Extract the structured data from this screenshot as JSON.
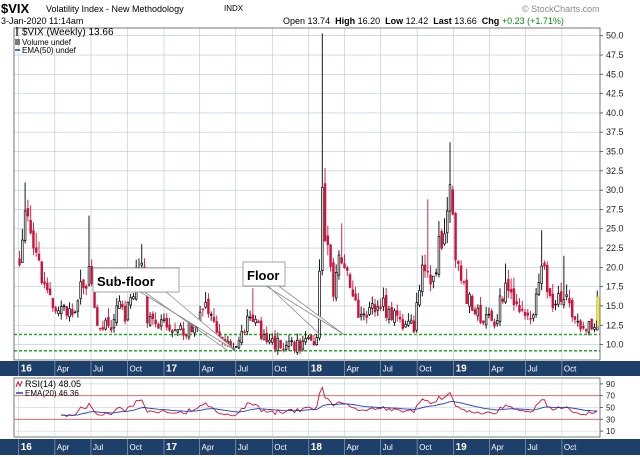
{
  "header": {
    "symbol": "$VIX",
    "description": "Volatility Index - New Methodology",
    "exchange": "INDX",
    "datetime": "3-Jan-2020 11:14am",
    "open_label": "Open",
    "open": "13.74",
    "high_label": "High",
    "high": "16.20",
    "low_label": "Low",
    "low": "12.42",
    "last_label": "Last",
    "last": "13.66",
    "chg_label": "Chg",
    "chg": "+0.23 (+1.71%)",
    "brand": "© StockCharts.com"
  },
  "legend": {
    "main": "$VIX (Weekly) 13.66",
    "volume": "Volume undef",
    "ema": "EMA(50) undef"
  },
  "annotations": {
    "subfloor": "Sub-floor",
    "floor": "Floor"
  },
  "rsi_legend": {
    "rsi": "RSI(14) 48.05",
    "ema": "EMA(20) 46.36"
  },
  "colors": {
    "up": "#000000",
    "down": "#d0123a",
    "grid": "#b5c7d8",
    "floor_line": "#22aa22",
    "rsi": "#d0123a",
    "rsi_ema": "#1f3fbf",
    "axis_band": "#1e3f6a",
    "band_text": "#ffffff"
  },
  "chart_data": [
    {
      "type": "candlestick",
      "title": "$VIX (Weekly) 13.66",
      "period": "weekly",
      "ylim": [
        8.0,
        51.0
      ],
      "y_ticks": [
        10.0,
        12.5,
        15.0,
        17.5,
        20.0,
        22.5,
        25.0,
        27.5,
        30.0,
        32.5,
        35.0,
        37.5,
        40.0,
        42.5,
        45.0,
        47.5,
        50.0
      ],
      "y_tick_labels": [
        "10.0",
        "12.5",
        "15.0",
        "17.5",
        "20.0",
        "22.5",
        "25.0",
        "27.5",
        "30.0",
        "32.5",
        "35.0",
        "37.5",
        "40.0",
        "42.5",
        "45.0",
        "47.5",
        "50.0"
      ],
      "x_labels": [
        "16",
        "Apr",
        "Jul",
        "Oct",
        "17",
        "Apr",
        "Jul",
        "Oct",
        "18",
        "Apr",
        "Jul",
        "Oct",
        "19",
        "Apr",
        "Jul",
        "Oct"
      ],
      "year_labels": [
        "16",
        "17",
        "18",
        "19"
      ],
      "x_range": [
        "2015-12-20",
        "2020-01-05"
      ],
      "horizontal_lines": [
        {
          "label": "Floor",
          "value": 11.3
        },
        {
          "label": "Sub-floor",
          "value": 9.2
        }
      ],
      "last_value": 13.66,
      "series_anchors": [
        {
          "date": "2016-01-03",
          "value": 20.7
        },
        {
          "date": "2016-01-17",
          "value": 26.5
        },
        {
          "date": "2016-02-07",
          "value": 24.0
        },
        {
          "date": "2016-02-21",
          "value": 21.0
        },
        {
          "date": "2016-03-13",
          "value": 16.5
        },
        {
          "date": "2016-04-10",
          "value": 14.0
        },
        {
          "date": "2016-05-15",
          "value": 14.5
        },
        {
          "date": "2016-06-26",
          "value": 19.5
        },
        {
          "date": "2016-07-17",
          "value": 12.5
        },
        {
          "date": "2016-08-21",
          "value": 12.0
        },
        {
          "date": "2016-09-11",
          "value": 16.0
        },
        {
          "date": "2016-09-25",
          "value": 13.5
        },
        {
          "date": "2016-11-06",
          "value": 21.0
        },
        {
          "date": "2016-11-20",
          "value": 13.0
        },
        {
          "date": "2016-12-25",
          "value": 12.5
        },
        {
          "date": "2017-02-19",
          "value": 11.5
        },
        {
          "date": "2017-04-16",
          "value": 14.5
        },
        {
          "date": "2017-05-21",
          "value": 10.5
        },
        {
          "date": "2017-06-25",
          "value": 10.0
        },
        {
          "date": "2017-08-13",
          "value": 14.0
        },
        {
          "date": "2017-09-10",
          "value": 10.5
        },
        {
          "date": "2017-11-05",
          "value": 9.8
        },
        {
          "date": "2017-12-24",
          "value": 10.0
        },
        {
          "date": "2018-01-21",
          "value": 11.0
        },
        {
          "date": "2018-02-04",
          "value": 29.0
        },
        {
          "date": "2018-02-11",
          "value": 24.5
        },
        {
          "date": "2018-03-04",
          "value": 17.0
        },
        {
          "date": "2018-03-25",
          "value": 21.5
        },
        {
          "date": "2018-04-15",
          "value": 17.0
        },
        {
          "date": "2018-05-20",
          "value": 13.0
        },
        {
          "date": "2018-06-24",
          "value": 15.5
        },
        {
          "date": "2018-08-12",
          "value": 13.5
        },
        {
          "date": "2018-09-23",
          "value": 12.0
        },
        {
          "date": "2018-10-14",
          "value": 21.0
        },
        {
          "date": "2018-11-11",
          "value": 18.5
        },
        {
          "date": "2018-12-23",
          "value": 30.0
        },
        {
          "date": "2019-01-13",
          "value": 19.0
        },
        {
          "date": "2019-02-17",
          "value": 14.5
        },
        {
          "date": "2019-04-14",
          "value": 12.5
        },
        {
          "date": "2019-05-12",
          "value": 18.0
        },
        {
          "date": "2019-06-02",
          "value": 16.0
        },
        {
          "date": "2019-07-14",
          "value": 12.5
        },
        {
          "date": "2019-08-11",
          "value": 20.0
        },
        {
          "date": "2019-09-08",
          "value": 15.0
        },
        {
          "date": "2019-10-06",
          "value": 17.0
        },
        {
          "date": "2019-11-10",
          "value": 12.5
        },
        {
          "date": "2019-12-15",
          "value": 12.8
        },
        {
          "date": "2020-01-03",
          "value": 13.66
        }
      ],
      "spikes": [
        {
          "date": "2016-01-17",
          "high": 31.0
        },
        {
          "date": "2016-06-26",
          "high": 26.7
        },
        {
          "date": "2016-11-06",
          "high": 23.0
        },
        {
          "date": "2017-08-13",
          "high": 17.3
        },
        {
          "date": "2018-02-04",
          "high": 50.3
        },
        {
          "date": "2018-03-25",
          "high": 25.7
        },
        {
          "date": "2018-10-28",
          "high": 28.8
        },
        {
          "date": "2018-12-23",
          "high": 36.2
        },
        {
          "date": "2019-05-12",
          "high": 20.5
        },
        {
          "date": "2019-08-11",
          "high": 24.8
        },
        {
          "date": "2019-10-06",
          "high": 21.5
        },
        {
          "date": "2019-12-29",
          "high": 17.0
        }
      ]
    },
    {
      "type": "line",
      "title": "RSI(14) 48.05",
      "ylim": [
        0,
        100
      ],
      "y_ticks": [
        10,
        30,
        50,
        70,
        90
      ],
      "y_tick_labels": [
        "10",
        "30",
        "50",
        "70",
        "90"
      ],
      "reference_lines": [
        30,
        70
      ],
      "series": [
        {
          "name": "RSI(14) 48.05",
          "last": 48.05
        },
        {
          "name": "EMA(20) 46.36",
          "last": 46.36
        }
      ]
    }
  ]
}
